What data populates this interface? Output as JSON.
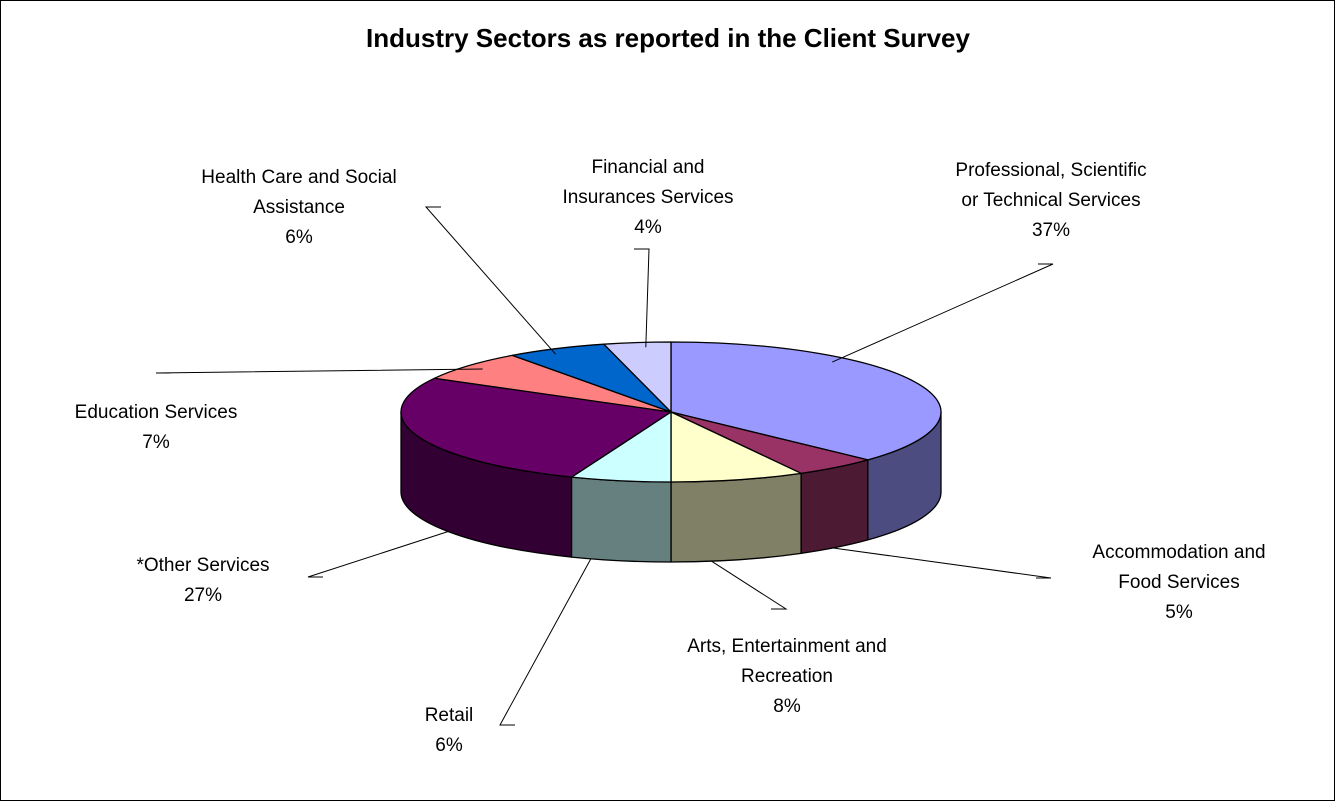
{
  "chart_data": {
    "type": "pie",
    "variant": "3d",
    "title": "Industry Sectors as reported in the Client Survey",
    "categories": [
      "Professional, Scientific or Technical Services",
      "Accommodation and Food Services",
      "Arts, Entertainment and Recreation",
      "Retail",
      "*Other Services",
      "Education Services",
      "Health Care and Social Assistance",
      "Financial and Insurances Services"
    ],
    "values": [
      37,
      5,
      8,
      6,
      27,
      7,
      6,
      4
    ],
    "value_labels": [
      "37%",
      "5%",
      "8%",
      "6%",
      "27%",
      "7%",
      "6%",
      "4%"
    ],
    "label_lines": [
      [
        "Professional, Scientific",
        "or Technical Services"
      ],
      [
        "Accommodation and",
        "Food Services"
      ],
      [
        "Arts, Entertainment and",
        "Recreation"
      ],
      [
        "Retail"
      ],
      [
        "*Other Services"
      ],
      [
        "Education Services"
      ],
      [
        "Health Care and Social",
        "Assistance"
      ],
      [
        "Financial and",
        "Insurances Services"
      ]
    ],
    "colors": [
      "#9999ff",
      "#993366",
      "#ffffcc",
      "#ccffff",
      "#660066",
      "#ff8080",
      "#0066cc",
      "#ccccff"
    ],
    "side_colors": [
      "#4c4c80",
      "#4d1a33",
      "#808066",
      "#668080",
      "#330033",
      "#804040",
      "#003366",
      "#666680"
    ],
    "legend": "none",
    "data_labels": "outside with leader lines"
  }
}
